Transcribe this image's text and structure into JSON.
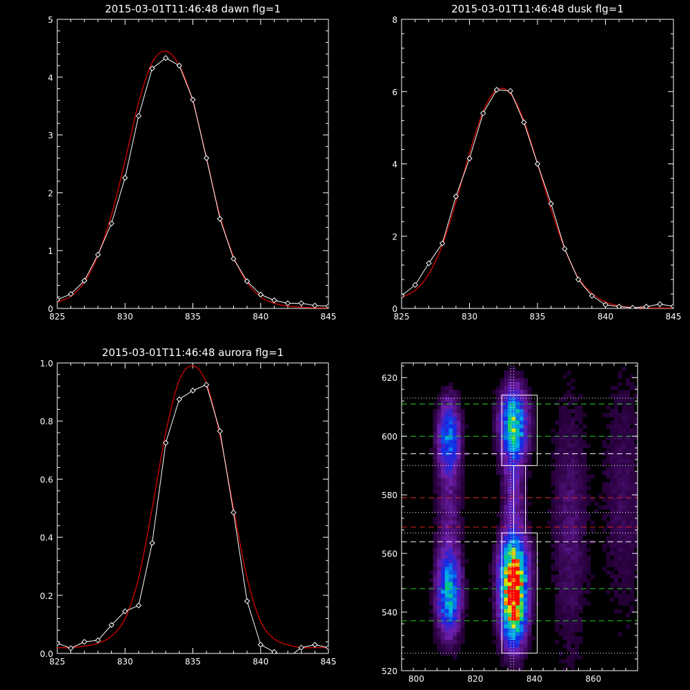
{
  "colors": {
    "background": "#000000",
    "axes": "#ffffff",
    "measured": "#ffffff",
    "fit": "#cc0000"
  },
  "chart_data": [
    {
      "type": "line",
      "title": "2015-03-01T11:46:48 dawn flg=1",
      "xlim": [
        825,
        845
      ],
      "ylim": [
        0,
        5
      ],
      "xticks": [
        825,
        830,
        835,
        840,
        845
      ],
      "yticks": [
        0,
        1,
        2,
        3,
        4,
        5
      ],
      "series": [
        {
          "role": "measured",
          "marker": "diamond",
          "x": [
            825,
            826,
            827,
            828,
            829,
            830,
            831,
            832,
            833,
            834,
            835,
            836,
            837,
            838,
            839,
            840,
            841,
            842,
            843,
            844,
            845
          ],
          "y": [
            0.15,
            0.25,
            0.48,
            0.93,
            1.47,
            2.26,
            3.33,
            4.15,
            4.33,
            4.2,
            3.61,
            2.6,
            1.55,
            0.86,
            0.47,
            0.24,
            0.14,
            0.09,
            0.09,
            0.05,
            0.04
          ]
        },
        {
          "role": "fit",
          "x": [
            825,
            826,
            827,
            828,
            829,
            830,
            831,
            832,
            833,
            834,
            835,
            836,
            837,
            838,
            839,
            840,
            841,
            842,
            843,
            844,
            845
          ],
          "y": [
            0.11,
            0.21,
            0.45,
            0.92,
            1.62,
            2.55,
            3.56,
            4.25,
            4.45,
            4.2,
            3.58,
            2.61,
            1.6,
            0.9,
            0.45,
            0.2,
            0.09,
            0.04,
            0.02,
            0.01,
            0.01
          ]
        }
      ]
    },
    {
      "type": "line",
      "title": "2015-03-01T11:46:48 dusk flg=1",
      "xlim": [
        825,
        845
      ],
      "ylim": [
        0,
        8
      ],
      "xticks": [
        825,
        830,
        835,
        840,
        845
      ],
      "yticks": [
        0,
        2,
        4,
        6,
        8
      ],
      "series": [
        {
          "role": "measured",
          "marker": "diamond",
          "x": [
            825,
            826,
            827,
            828,
            829,
            830,
            831,
            832,
            833,
            834,
            835,
            836,
            837,
            838,
            839,
            840,
            841,
            842,
            843,
            844,
            845
          ],
          "y": [
            0.35,
            0.65,
            1.25,
            1.8,
            3.1,
            4.15,
            5.4,
            6.05,
            6.02,
            5.15,
            4.0,
            2.9,
            1.65,
            0.8,
            0.35,
            0.1,
            0.05,
            0.02,
            0.05,
            0.12,
            0.06
          ]
        },
        {
          "role": "fit",
          "x": [
            825,
            826,
            827,
            828,
            829,
            830,
            831,
            832,
            833,
            834,
            835,
            836,
            837,
            838,
            839,
            840,
            841,
            842,
            843,
            844,
            845
          ],
          "y": [
            0.3,
            0.5,
            0.95,
            1.75,
            2.95,
            4.3,
            5.45,
            6.05,
            5.95,
            5.2,
            4.0,
            2.75,
            1.65,
            0.85,
            0.42,
            0.18,
            0.07,
            0.03,
            0.02,
            0.01,
            0.01
          ]
        }
      ]
    },
    {
      "type": "line",
      "title": "2015-03-01T11:46:48 aurora flg=1",
      "xlim": [
        825,
        845
      ],
      "ylim": [
        0,
        1.0
      ],
      "xticks": [
        825,
        830,
        835,
        840,
        845
      ],
      "yticks": [
        "0.0",
        "0.2",
        "0.4",
        "0.6",
        "0.8",
        "1.0"
      ],
      "series": [
        {
          "role": "measured",
          "marker": "diamond",
          "x": [
            825,
            826,
            827,
            828,
            829,
            830,
            831,
            832,
            833,
            834,
            835,
            836,
            837,
            838,
            839,
            840,
            841,
            842,
            843,
            844,
            845
          ],
          "y": [
            0.035,
            0.018,
            0.04,
            0.045,
            0.098,
            0.145,
            0.165,
            0.38,
            0.725,
            0.875,
            0.905,
            0.925,
            0.765,
            0.485,
            0.18,
            0.03,
            0.005,
            -0.015,
            0.02,
            0.03,
            0.02
          ]
        },
        {
          "role": "fit",
          "x": [
            825,
            826,
            827,
            828,
            829,
            830,
            831,
            832,
            833,
            834,
            835,
            836,
            837,
            838,
            839,
            840,
            841,
            842,
            843,
            844,
            845
          ],
          "y": [
            0.02,
            0.02,
            0.025,
            0.035,
            0.06,
            0.12,
            0.26,
            0.5,
            0.76,
            0.94,
            0.99,
            0.93,
            0.75,
            0.5,
            0.26,
            0.11,
            0.05,
            0.03,
            0.02,
            0.02,
            0.02
          ]
        }
      ]
    },
    {
      "type": "heatmap",
      "title": "",
      "xlim": [
        795,
        875
      ],
      "ylim": [
        520,
        625
      ],
      "xticks": [
        800,
        820,
        840,
        860
      ],
      "yticks": [
        520,
        540,
        560,
        580,
        600,
        620
      ],
      "blobs": [
        {
          "x": 833,
          "y": 543,
          "sx": 2.8,
          "sy": 9,
          "amp": 1.0
        },
        {
          "x": 833,
          "y": 556,
          "sx": 3.2,
          "sy": 7,
          "amp": 0.55
        },
        {
          "x": 833,
          "y": 604,
          "sx": 3.0,
          "sy": 8,
          "amp": 0.62
        },
        {
          "x": 833,
          "y": 578,
          "sx": 2.5,
          "sy": 14,
          "amp": 0.18
        },
        {
          "x": 811,
          "y": 546,
          "sx": 2.6,
          "sy": 9,
          "amp": 0.55
        },
        {
          "x": 811,
          "y": 600,
          "sx": 2.4,
          "sy": 8,
          "amp": 0.42
        },
        {
          "x": 811,
          "y": 575,
          "sx": 3.0,
          "sy": 16,
          "amp": 0.12
        },
        {
          "x": 852,
          "y": 570,
          "sx": 4.0,
          "sy": 30,
          "amp": 0.1
        },
        {
          "x": 870,
          "y": 580,
          "sx": 5.0,
          "sy": 30,
          "amp": 0.07
        }
      ],
      "boxes": [
        {
          "x0": 829,
          "x1": 841,
          "y0": 590,
          "y1": 614
        },
        {
          "x0": 829,
          "x1": 841,
          "y0": 526,
          "y1": 567
        },
        {
          "x0": 833,
          "x1": 837,
          "y0": 567,
          "y1": 590
        }
      ],
      "hlines": [
        {
          "y": 611,
          "color": "#22cc22",
          "style": "dashed"
        },
        {
          "y": 600,
          "color": "#22cc22",
          "style": "dashed"
        },
        {
          "y": 548,
          "color": "#22cc22",
          "style": "dashed"
        },
        {
          "y": 537,
          "color": "#22cc22",
          "style": "dashed"
        },
        {
          "y": 594,
          "color": "#ffffff",
          "style": "dashed"
        },
        {
          "y": 564,
          "color": "#ffffff",
          "style": "dashed"
        },
        {
          "y": 579,
          "color": "#dd2222",
          "style": "dashed"
        },
        {
          "y": 569,
          "color": "#dd2222",
          "style": "dashed"
        },
        {
          "y": 613,
          "color": "#ffffff",
          "style": "dotted"
        },
        {
          "y": 590,
          "color": "#ffffff",
          "style": "dotted"
        },
        {
          "y": 574,
          "color": "#ffffff",
          "style": "dotted"
        },
        {
          "y": 567,
          "color": "#ffffff",
          "style": "dotted"
        },
        {
          "y": 526,
          "color": "#ffffff",
          "style": "dotted"
        }
      ],
      "vlines": [
        {
          "x": 832,
          "color": "#ffffff",
          "style": "dotted"
        },
        {
          "x": 833,
          "color": "#ffffff",
          "style": "dotted"
        }
      ]
    }
  ]
}
